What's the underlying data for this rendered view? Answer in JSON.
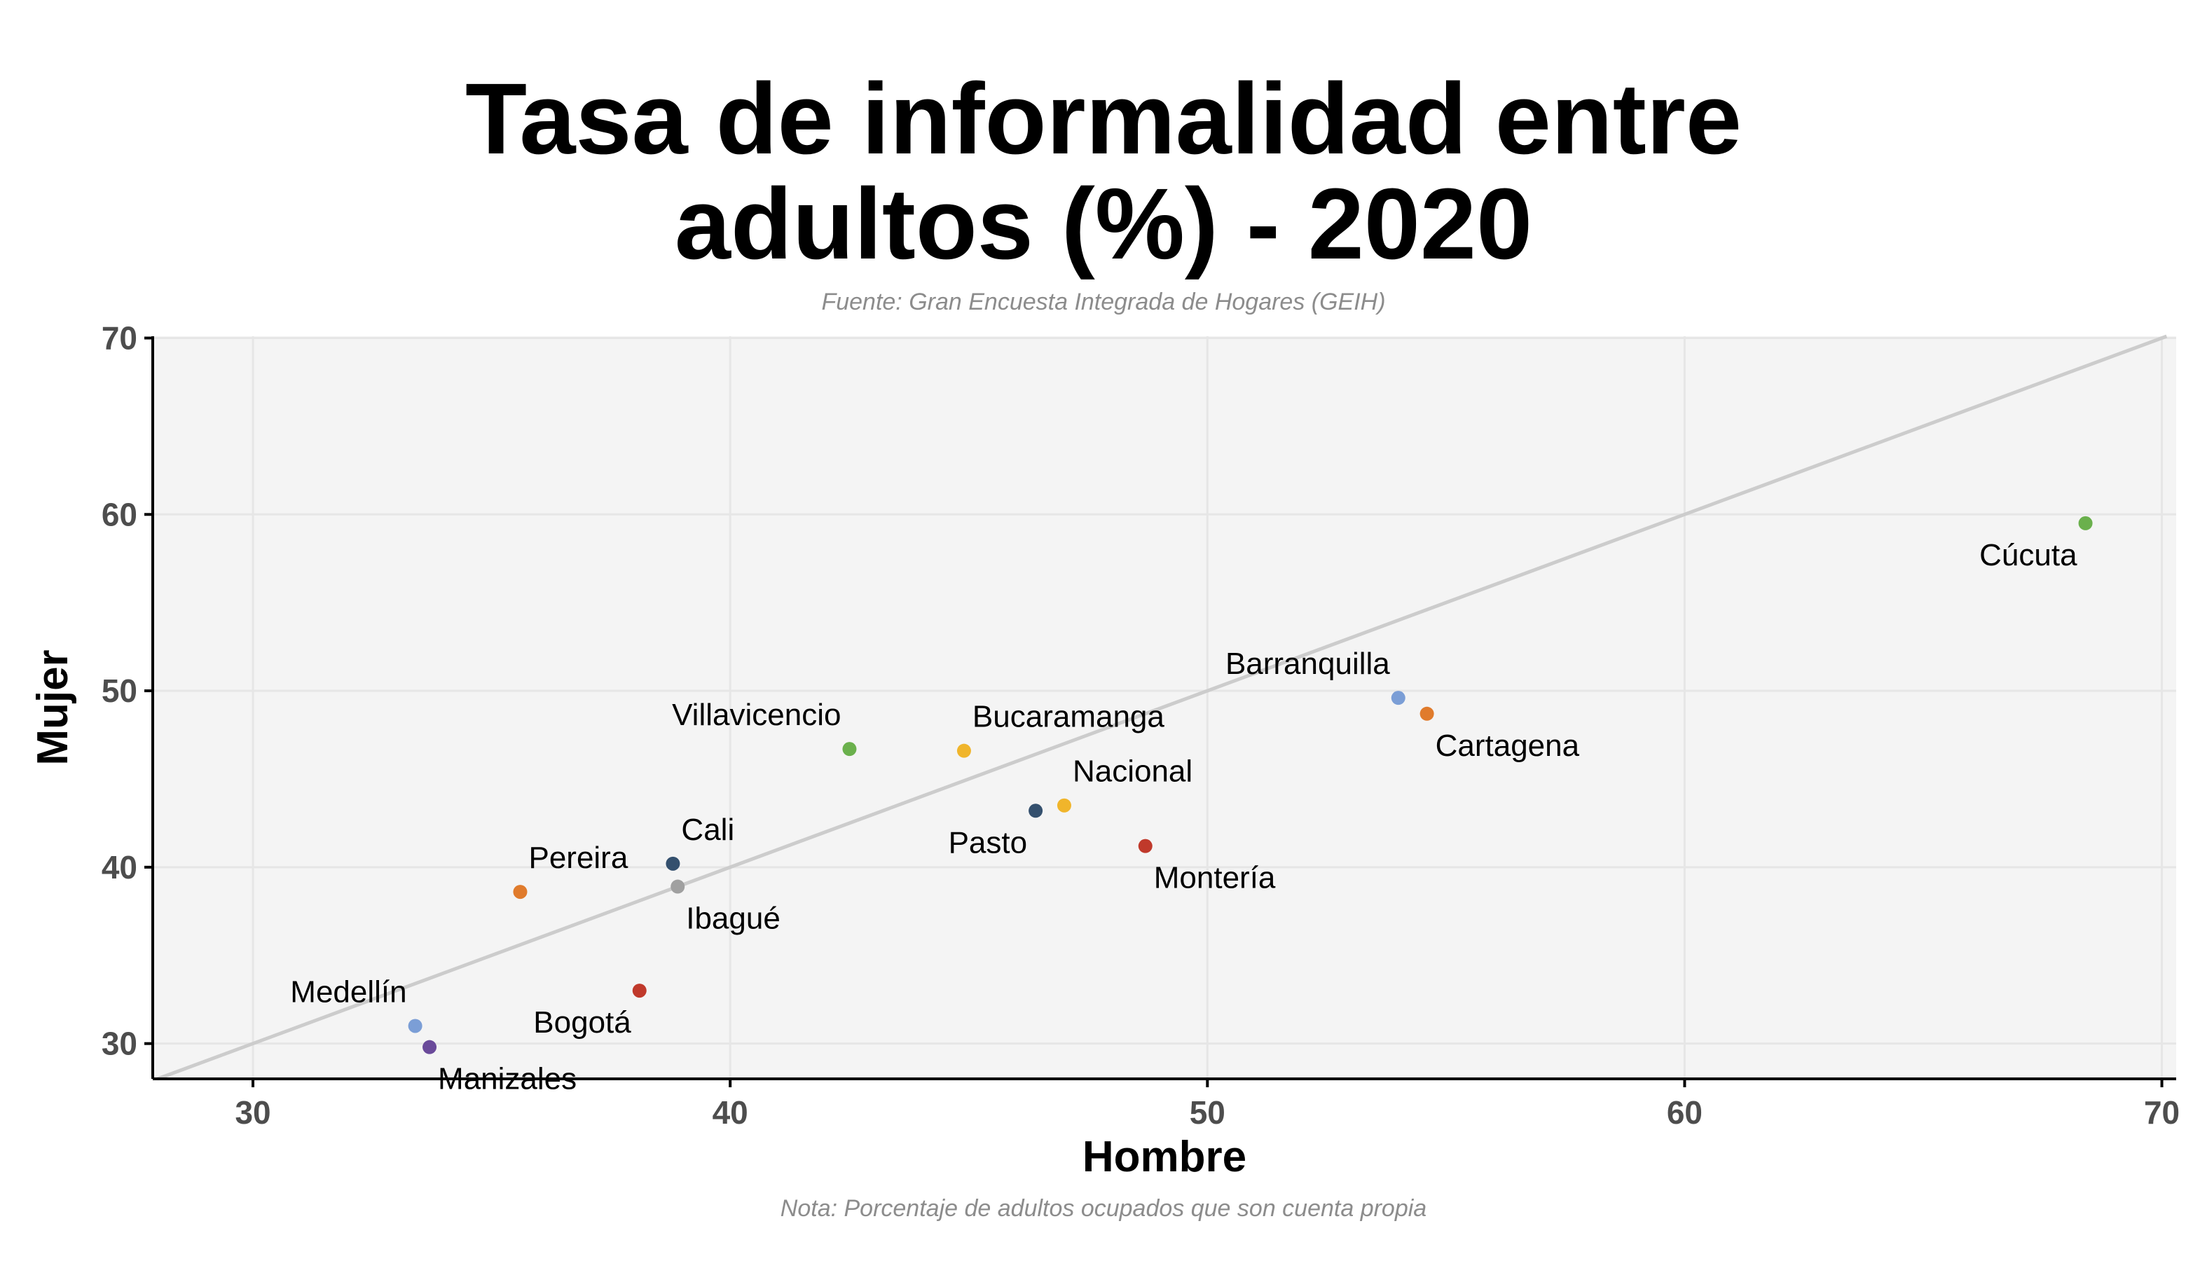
{
  "chart_data": {
    "type": "scatter",
    "title_lines": [
      "Tasa de informalidad entre",
      "adultos (%) - 2020"
    ],
    "subtitle": "Fuente: Gran Encuesta Integrada de Hogares (GEIH)",
    "caption": "Nota: Porcentaje de adultos ocupados que son cuenta propia",
    "xlabel": "Hombre",
    "ylabel": "Mujer",
    "xlim": [
      27.9,
      70.3
    ],
    "ylim": [
      28.0,
      70.1
    ],
    "xticks": [
      30,
      40,
      50,
      60,
      70
    ],
    "yticks": [
      30,
      40,
      50,
      60,
      70
    ],
    "grid": true,
    "reference_line": {
      "type": "identity",
      "slope": 1,
      "intercept": 0,
      "color": "#cccccc"
    },
    "points": [
      {
        "label": "Cúcuta",
        "x": 68.4,
        "y": 59.5,
        "color": "#6ab04c",
        "label_pos": "below-left"
      },
      {
        "label": "Barranquilla",
        "x": 54.0,
        "y": 49.6,
        "color": "#7b9ed6",
        "label_pos": "above-left"
      },
      {
        "label": "Cartagena",
        "x": 54.6,
        "y": 48.7,
        "color": "#e07b2c",
        "label_pos": "below-right"
      },
      {
        "label": "Villavicencio",
        "x": 42.5,
        "y": 46.7,
        "color": "#6ab04c",
        "label_pos": "above-left"
      },
      {
        "label": "Bucaramanga",
        "x": 44.9,
        "y": 46.6,
        "color": "#f0b52b",
        "label_pos": "above-right"
      },
      {
        "label": "Nacional",
        "x": 47.0,
        "y": 43.5,
        "color": "#f0b52b",
        "label_pos": "above-right"
      },
      {
        "label": "Pasto",
        "x": 46.4,
        "y": 43.2,
        "color": "#34506e",
        "label_pos": "below-left"
      },
      {
        "label": "Montería",
        "x": 48.7,
        "y": 41.2,
        "color": "#c0392b",
        "label_pos": "below-right"
      },
      {
        "label": "Cali",
        "x": 38.8,
        "y": 40.2,
        "color": "#34506e",
        "label_pos": "above-right"
      },
      {
        "label": "Ibagué",
        "x": 38.9,
        "y": 38.9,
        "color": "#a0a0a0",
        "label_pos": "below-right"
      },
      {
        "label": "Pereira",
        "x": 35.6,
        "y": 38.6,
        "color": "#e07b2c",
        "label_pos": "above-right"
      },
      {
        "label": "Bogotá",
        "x": 38.1,
        "y": 33.0,
        "color": "#c0392b",
        "label_pos": "below-left"
      },
      {
        "label": "Medellín",
        "x": 33.4,
        "y": 31.0,
        "color": "#7b9ed6",
        "label_pos": "above-left"
      },
      {
        "label": "Manizales",
        "x": 33.7,
        "y": 29.8,
        "color": "#6a4a9a",
        "label_pos": "below-right"
      }
    ],
    "colors": {
      "panel": "#f4f4f4",
      "grid": "#e6e6e6",
      "axis": "#000000",
      "tick_text": "#4d4d4d",
      "label_text": "#000000"
    }
  }
}
